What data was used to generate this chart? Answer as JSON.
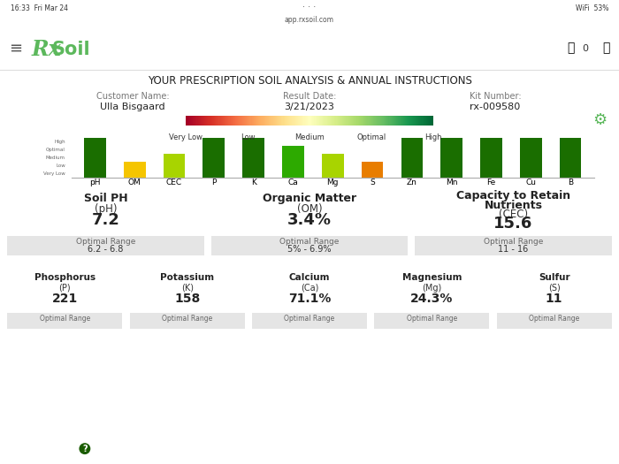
{
  "title": "YOUR PRESCRIPTION SOIL ANALYSIS & ANNUAL INSTRUCTIONS",
  "customer_label": "Customer Name:",
  "customer_name": "Ulla Bisgaard",
  "result_label": "Result Date:",
  "result_date": "3/21/2023",
  "kit_label": "Kit Number:",
  "kit_number": "rx-009580",
  "bar_categories": [
    "pH",
    "OM",
    "CEC",
    "P",
    "K",
    "Ca",
    "Mg",
    "S",
    "Zn",
    "Mn",
    "Fe",
    "Cu",
    "B"
  ],
  "bar_heights": [
    5,
    2,
    3,
    5,
    5,
    4,
    3,
    2,
    5,
    5,
    5,
    5,
    5
  ],
  "bar_colors": [
    "#1a6e00",
    "#f5c500",
    "#a8d400",
    "#1a6e00",
    "#1a6e00",
    "#2daa00",
    "#a8d400",
    "#e87d00",
    "#1a6e00",
    "#1a6e00",
    "#1a6e00",
    "#1a6e00",
    "#1a6e00"
  ],
  "level_labels": [
    "High",
    "Optimal",
    "Medium",
    "Low",
    "Very Low"
  ],
  "legend_labels": [
    "Very Low",
    "Low",
    "Medium",
    "Optimal",
    "High"
  ],
  "cards_row1": [
    {
      "title": "Soil PH",
      "subtitle": "(pH)",
      "value": "7.2",
      "range_label": "Optimal Range",
      "range_value": "6.2 - 6.8",
      "color": "#2e8b00"
    },
    {
      "title": "Organic Matter",
      "subtitle": "(OM)",
      "value": "3.4%",
      "range_label": "Optimal Range",
      "range_value": "5% - 6.9%",
      "color": "#d4e600"
    },
    {
      "title": "Capacity to Retain\nNutrients\n(CEC)\n15.6",
      "subtitle": "",
      "value": "",
      "range_label": "Optimal Range",
      "range_value": "11 - 16",
      "color": "#aadd00"
    }
  ],
  "cards_row2": [
    {
      "title": "Phosphorus",
      "subtitle": "(P)",
      "value": "221",
      "range_label": "Optimal Range",
      "range_value": "",
      "color": "#2e8b00"
    },
    {
      "title": "Potassium",
      "subtitle": "(K)",
      "value": "158",
      "range_label": "Optimal Range",
      "range_value": "",
      "color": "#1a6e00"
    },
    {
      "title": "Calcium",
      "subtitle": "(Ca)",
      "value": "71.1%",
      "range_label": "Optimal Range",
      "range_value": "",
      "color": "#00cc00"
    },
    {
      "title": "Magnesium",
      "subtitle": "(Mg)",
      "value": "24.3%",
      "range_label": "Optimal Range",
      "range_value": "",
      "color": "#aadd00"
    },
    {
      "title": "Sulfur",
      "subtitle": "(S)",
      "value": "11",
      "range_label": "Optimal Range",
      "range_value": "",
      "color": "#e8a000"
    }
  ],
  "bg_color": "#ffffff"
}
